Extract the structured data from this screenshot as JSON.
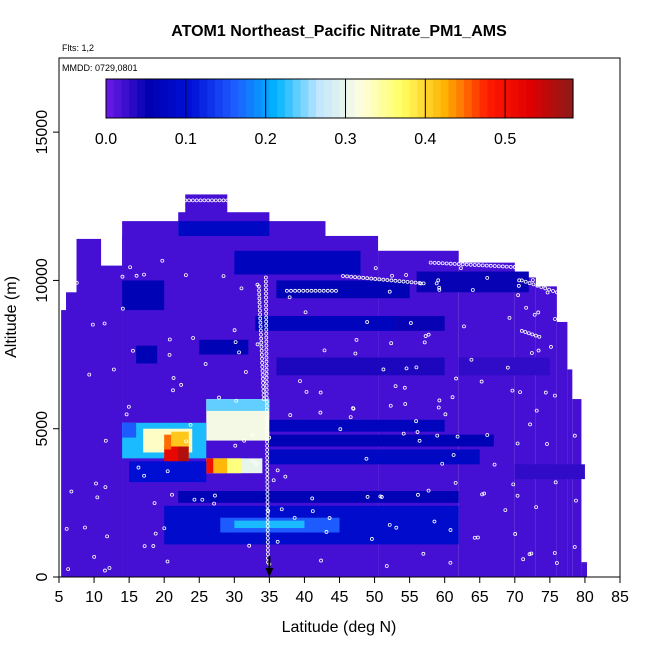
{
  "chart_data": {
    "type": "heatmap",
    "title": "ATOM1 Northeast_Pacific Nitrate_PM1_AMS",
    "annotations": [
      "Flts: 1,2",
      "MMDD: 0729,0801"
    ],
    "xlabel": "Latitude (deg N)",
    "ylabel": "Altitude (m)",
    "xlim": [
      5,
      85
    ],
    "ylim": [
      0,
      17500
    ],
    "x_ticks": [
      "5",
      "10",
      "15",
      "20",
      "25",
      "30",
      "35",
      "40",
      "45",
      "50",
      "55",
      "60",
      "65",
      "70",
      "75",
      "80",
      "85"
    ],
    "y_ticks": [
      "0",
      "5000",
      "10000",
      "15000"
    ],
    "colorbar": {
      "range": [
        0,
        0.585
      ],
      "ticks": [
        "0.0",
        "0.1",
        "0.2",
        "0.3",
        "0.4",
        "0.5"
      ],
      "colors": [
        "#6f1ae8",
        "#0000b0",
        "#0010d8",
        "#1e5aff",
        "#00b4ff",
        "#bfe6ff",
        "#fffde0",
        "#ffff60",
        "#ffb000",
        "#ff1a00",
        "#e00000",
        "#8b1a1a"
      ]
    },
    "marker_latitude": 35,
    "background_value": 0.02,
    "domain_envelope": [
      {
        "x0": 5.3,
        "x1": 11,
        "top": 9000
      },
      {
        "x0": 6,
        "x1": 7.5,
        "top": 9600
      },
      {
        "x0": 7.5,
        "x1": 14,
        "top": 10500
      },
      {
        "x0": 7.5,
        "x1": 11,
        "top": 11400
      },
      {
        "x0": 14,
        "x1": 50.5,
        "top": 11500
      },
      {
        "x0": 14,
        "x1": 22,
        "top": 12000
      },
      {
        "x0": 26,
        "x1": 43,
        "top": 12000
      },
      {
        "x0": 22,
        "x1": 35,
        "top": 12300
      },
      {
        "x0": 23,
        "x1": 29,
        "top": 12900
      },
      {
        "x0": 50.5,
        "x1": 62,
        "top": 11000
      },
      {
        "x0": 62,
        "x1": 70,
        "top": 10600
      },
      {
        "x0": 70,
        "x1": 73,
        "top": 10100
      },
      {
        "x0": 73,
        "x1": 76,
        "top": 9800
      },
      {
        "x0": 76,
        "x1": 77.5,
        "top": 8600
      },
      {
        "x0": 77.5,
        "x1": 78.2,
        "top": 7000
      },
      {
        "x0": 78.2,
        "x1": 79.5,
        "top": 6000
      },
      {
        "x0": 79.5,
        "x1": 80.3,
        "top": 500
      }
    ],
    "features": [
      {
        "x0": 26,
        "x1": 35,
        "y0": 4600,
        "y1": 6000,
        "v": 0.31
      },
      {
        "x0": 26,
        "x1": 35,
        "y0": 5600,
        "y1": 6000,
        "v": 0.24
      },
      {
        "x0": 14,
        "x1": 26,
        "y0": 4000,
        "y1": 5200,
        "v": 0.22
      },
      {
        "x0": 17,
        "x1": 24,
        "y0": 4200,
        "y1": 5000,
        "v": 0.33
      },
      {
        "x0": 21,
        "x1": 23.5,
        "y0": 4000,
        "y1": 4900,
        "v": 0.41
      },
      {
        "x0": 20,
        "x1": 22.5,
        "y0": 3900,
        "y1": 4400,
        "v": 0.52
      },
      {
        "x0": 22,
        "x1": 23.5,
        "y0": 3900,
        "y1": 4400,
        "v": 0.56
      },
      {
        "x0": 20,
        "x1": 21,
        "y0": 4300,
        "y1": 4800,
        "v": 0.45
      },
      {
        "x0": 26,
        "x1": 34,
        "y0": 3500,
        "y1": 4000,
        "v": 0.3
      },
      {
        "x0": 27,
        "x1": 29,
        "y0": 3500,
        "y1": 4000,
        "v": 0.42
      },
      {
        "x0": 29,
        "x1": 31,
        "y0": 3500,
        "y1": 4000,
        "v": 0.36
      },
      {
        "x0": 26,
        "x1": 27,
        "y0": 3500,
        "y1": 4000,
        "v": 0.5
      },
      {
        "x0": 15,
        "x1": 26,
        "y0": 3200,
        "y1": 3900,
        "v": 0.1
      },
      {
        "x0": 14,
        "x1": 16,
        "y0": 4700,
        "y1": 5200,
        "v": 0.16
      },
      {
        "x0": 35,
        "x1": 65,
        "y0": 3800,
        "y1": 4300,
        "v": 0.08
      },
      {
        "x0": 35,
        "x1": 67,
        "y0": 4400,
        "y1": 4800,
        "v": 0.06
      },
      {
        "x0": 35,
        "x1": 60,
        "y0": 4900,
        "y1": 5300,
        "v": 0.07
      },
      {
        "x0": 20,
        "x1": 62,
        "y0": 1100,
        "y1": 2400,
        "v": 0.09
      },
      {
        "x0": 28,
        "x1": 45,
        "y0": 1500,
        "y1": 2000,
        "v": 0.16
      },
      {
        "x0": 30,
        "x1": 40,
        "y0": 1650,
        "y1": 1900,
        "v": 0.22
      },
      {
        "x0": 22,
        "x1": 62,
        "y0": 2500,
        "y1": 2900,
        "v": 0.06
      },
      {
        "x0": 14,
        "x1": 20,
        "y0": 9000,
        "y1": 10000,
        "v": 0.06
      },
      {
        "x0": 16,
        "x1": 19,
        "y0": 7200,
        "y1": 7800,
        "v": 0.06
      },
      {
        "x0": 22,
        "x1": 35,
        "y0": 11500,
        "y1": 12000,
        "v": 0.08
      },
      {
        "x0": 30,
        "x1": 48,
        "y0": 10200,
        "y1": 11000,
        "v": 0.07
      },
      {
        "x0": 33,
        "x1": 53,
        "y0": 8300,
        "y1": 8800,
        "v": 0.07
      },
      {
        "x0": 53,
        "x1": 60,
        "y0": 8300,
        "y1": 8800,
        "v": 0.05
      },
      {
        "x0": 36,
        "x1": 55,
        "y0": 9400,
        "y1": 10000,
        "v": 0.06
      },
      {
        "x0": 25,
        "x1": 32,
        "y0": 7500,
        "y1": 8000,
        "v": 0.06
      },
      {
        "x0": 56,
        "x1": 72,
        "y0": 9600,
        "y1": 10300,
        "v": 0.05
      },
      {
        "x0": 36,
        "x1": 60,
        "y0": 6800,
        "y1": 7400,
        "v": 0.04
      },
      {
        "x0": 62,
        "x1": 75,
        "y0": 6800,
        "y1": 7400,
        "v": 0.03
      },
      {
        "x0": 70,
        "x1": 80,
        "y0": 3300,
        "y1": 3800,
        "v": 0.03
      }
    ],
    "flight_tracks": [
      {
        "x0": 23,
        "y0": 12700,
        "x1": 29,
        "y1": 12700
      },
      {
        "x0": 37.5,
        "y0": 9650,
        "x1": 44.5,
        "y1": 9650
      },
      {
        "x0": 45.5,
        "y0": 10150,
        "x1": 57,
        "y1": 9900
      },
      {
        "x0": 58,
        "y0": 10600,
        "x1": 70,
        "y1": 10450
      },
      {
        "x0": 71,
        "y0": 10000,
        "x1": 76,
        "y1": 9600
      },
      {
        "x0": 71,
        "y0": 8300,
        "x1": 73.5,
        "y1": 8100
      },
      {
        "x0": 34.5,
        "y0": 10100,
        "x1": 34.8,
        "y1": 500
      },
      {
        "x0": 33.5,
        "y0": 9800,
        "x1": 34.2,
        "y1": 6000
      }
    ]
  }
}
